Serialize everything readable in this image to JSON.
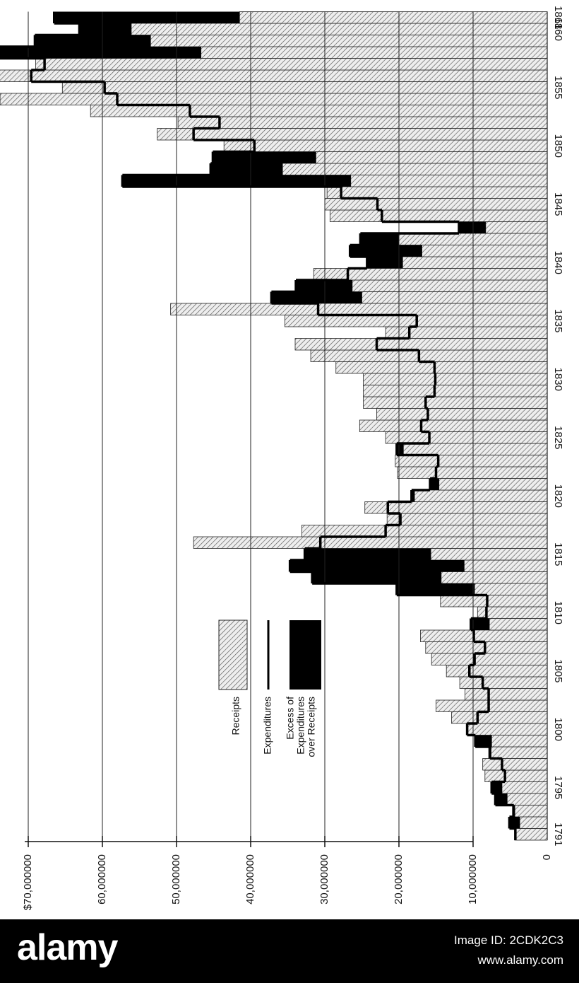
{
  "chart_data": {
    "type": "receipts-expenditures",
    "x": [
      1791,
      1792,
      1793,
      1794,
      1795,
      1796,
      1797,
      1798,
      1799,
      1800,
      1801,
      1802,
      1803,
      1804,
      1805,
      1806,
      1807,
      1808,
      1809,
      1810,
      1811,
      1812,
      1813,
      1814,
      1815,
      1816,
      1817,
      1818,
      1819,
      1820,
      1821,
      1822,
      1823,
      1824,
      1825,
      1826,
      1827,
      1828,
      1829,
      1830,
      1831,
      1832,
      1833,
      1834,
      1835,
      1836,
      1837,
      1838,
      1839,
      1840,
      1841,
      1842,
      1843,
      1844,
      1845,
      1846,
      1847,
      1848,
      1849,
      1850,
      1851,
      1852,
      1853,
      1854,
      1855,
      1856,
      1857,
      1858,
      1859,
      1860,
      1861
    ],
    "xticks": [
      1791,
      1795,
      1800,
      1805,
      1810,
      1815,
      1820,
      1825,
      1830,
      1835,
      1840,
      1845,
      1850,
      1855,
      1860,
      1861
    ],
    "series": [
      {
        "name": "Receipts",
        "color": "#888888",
        "values": [
          4400000,
          3700000,
          4700000,
          5400000,
          6100000,
          8400000,
          8700000,
          7900000,
          7500000,
          10800000,
          12900000,
          15000000,
          11100000,
          11800000,
          13600000,
          15600000,
          16400000,
          17100000,
          7800000,
          9400000,
          14400000,
          9800000,
          14300000,
          11200000,
          15700000,
          47700000,
          33100000,
          21600000,
          24600000,
          17900000,
          14600000,
          20200000,
          20500000,
          19400000,
          21800000,
          25300000,
          23000000,
          24800000,
          24800000,
          24800000,
          28500000,
          31900000,
          34000000,
          21800000,
          35400000,
          50800000,
          25000000,
          26300000,
          31500000,
          19500000,
          16900000,
          20000000,
          8300000,
          29300000,
          30000000,
          29700000,
          26500000,
          35700000,
          31200000,
          43600000,
          52600000,
          49800000,
          61600000,
          73800000,
          65400000,
          74100000,
          69000000,
          46700000,
          53500000,
          56100000,
          41500000
        ]
      },
      {
        "name": "Expenditures",
        "color": "#000000",
        "values": [
          4300000,
          5100000,
          4500000,
          7000000,
          7500000,
          5700000,
          6100000,
          7700000,
          9700000,
          10800000,
          9400000,
          7900000,
          7900000,
          8700000,
          10500000,
          9800000,
          8400000,
          9900000,
          10300000,
          8200000,
          8100000,
          20300000,
          31700000,
          34700000,
          32700000,
          30600000,
          21800000,
          19800000,
          21500000,
          18300000,
          15800000,
          15000000,
          14700000,
          20300000,
          15900000,
          17000000,
          16100000,
          16400000,
          15200000,
          15100000,
          15200000,
          17300000,
          23000000,
          18600000,
          17600000,
          30900000,
          37200000,
          33900000,
          26900000,
          24300000,
          26600000,
          25200000,
          11900000,
          22300000,
          22900000,
          27800000,
          57300000,
          45400000,
          45100000,
          39500000,
          47700000,
          44200000,
          48200000,
          58000000,
          59700000,
          69600000,
          67800000,
          74200000,
          69100000,
          63100000,
          66500000
        ]
      }
    ],
    "excess_label": [
      "Excess of",
      "Expenditures",
      "over Receipts"
    ],
    "excess_color": "#000000",
    "ylim": [
      0,
      70000000
    ],
    "yticks": [
      0,
      {
        "value": 10000000,
        "label": "10,000000"
      },
      {
        "value": 20000000,
        "label": "20,000000"
      },
      {
        "value": 30000000,
        "label": "30,000000"
      },
      {
        "value": 40000000,
        "label": "40,000000"
      },
      {
        "value": 50000000,
        "label": "50,000000"
      },
      {
        "value": 60000000,
        "label": "60,000000"
      },
      {
        "value": 70000000,
        "label": "$70,000000"
      }
    ],
    "grid": true
  },
  "watermark": {
    "brand": "alamy",
    "image_id": "Image ID: 2CDK2C3",
    "site": "www.alamy.com"
  }
}
